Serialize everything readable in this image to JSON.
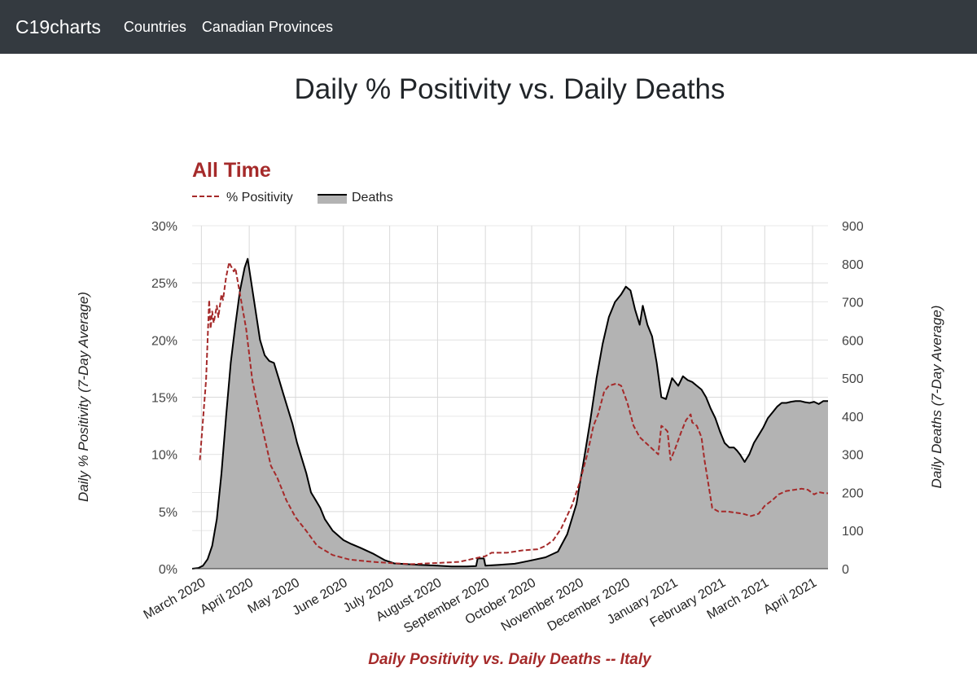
{
  "nav": {
    "brand": "C19charts",
    "links": [
      "Countries",
      "Canadian Provinces"
    ]
  },
  "page_title": "Daily % Positivity vs. Daily Deaths",
  "chart_data": {
    "type": "line",
    "title": "All Time",
    "xlabel": "Daily Positivity vs. Daily Deaths -- Italy",
    "ylabel_left": "Daily % Positivity (7-Day Average)",
    "ylabel_right": "Daily Deaths (7-Day Average)",
    "legend": [
      {
        "name": "% Positivity",
        "style": "dashed",
        "color": "#a52a2a"
      },
      {
        "name": "Deaths",
        "style": "area",
        "color": "#000000",
        "fill": "#b3b3b3"
      }
    ],
    "legend_position": "top-left",
    "x_start": "2020-02-24",
    "x_end": "2021-04-11",
    "x_ticks": [
      {
        "date": "2020-03-01",
        "label": "March 2020"
      },
      {
        "date": "2020-04-01",
        "label": "April 2020"
      },
      {
        "date": "2020-05-01",
        "label": "May 2020"
      },
      {
        "date": "2020-06-01",
        "label": "June 2020"
      },
      {
        "date": "2020-07-01",
        "label": "July 2020"
      },
      {
        "date": "2020-08-01",
        "label": "August 2020"
      },
      {
        "date": "2020-09-01",
        "label": "September 2020"
      },
      {
        "date": "2020-10-01",
        "label": "October 2020"
      },
      {
        "date": "2020-11-01",
        "label": "November 2020"
      },
      {
        "date": "2020-12-01",
        "label": "December 2020"
      },
      {
        "date": "2021-01-01",
        "label": "January 2021"
      },
      {
        "date": "2021-02-01",
        "label": "February 2021"
      },
      {
        "date": "2021-03-01",
        "label": "March 2021"
      },
      {
        "date": "2021-04-01",
        "label": "April 2021"
      }
    ],
    "y_left": {
      "min": 0,
      "max": 30,
      "ticks": [
        0,
        5,
        10,
        15,
        20,
        25,
        30
      ],
      "tick_labels": [
        "0%",
        "5%",
        "10%",
        "15%",
        "20%",
        "25%",
        "30%"
      ]
    },
    "y_right": {
      "min": 0,
      "max": 900,
      "ticks": [
        0,
        100,
        200,
        300,
        400,
        500,
        600,
        700,
        800,
        900
      ],
      "tick_labels": [
        "0",
        "100",
        "200",
        "300",
        "400",
        "500",
        "600",
        "700",
        "800",
        "900"
      ]
    },
    "grid": true,
    "colors": {
      "positivity": "#a52a2a",
      "deaths_line": "#000000",
      "deaths_fill": "#b3b3b3",
      "title": "#a52a2a",
      "grid": "#d9d9d9"
    },
    "series": [
      {
        "name": "% Positivity",
        "axis": "left",
        "points": [
          [
            "2020-02-29",
            9.5
          ],
          [
            "2020-03-02",
            13.0
          ],
          [
            "2020-03-04",
            16.5
          ],
          [
            "2020-03-05",
            20.0
          ],
          [
            "2020-03-06",
            23.5
          ],
          [
            "2020-03-07",
            21.0
          ],
          [
            "2020-03-08",
            22.5
          ],
          [
            "2020-03-09",
            21.5
          ],
          [
            "2020-03-11",
            23.0
          ],
          [
            "2020-03-12",
            22.0
          ],
          [
            "2020-03-14",
            24.0
          ],
          [
            "2020-03-15",
            23.5
          ],
          [
            "2020-03-17",
            25.5
          ],
          [
            "2020-03-19",
            26.8
          ],
          [
            "2020-03-20",
            26.5
          ],
          [
            "2020-03-22",
            26.0
          ],
          [
            "2020-03-23",
            26.3
          ],
          [
            "2020-03-26",
            24.0
          ],
          [
            "2020-03-30",
            21.0
          ],
          [
            "2020-04-03",
            16.5
          ],
          [
            "2020-04-06",
            14.5
          ],
          [
            "2020-04-10",
            12.0
          ],
          [
            "2020-04-15",
            9.0
          ],
          [
            "2020-04-19",
            8.0
          ],
          [
            "2020-04-25",
            6.0
          ],
          [
            "2020-05-01",
            4.5
          ],
          [
            "2020-05-08",
            3.3
          ],
          [
            "2020-05-15",
            2.0
          ],
          [
            "2020-05-25",
            1.2
          ],
          [
            "2020-06-05",
            0.8
          ],
          [
            "2020-06-20",
            0.6
          ],
          [
            "2020-07-01",
            0.5
          ],
          [
            "2020-07-15",
            0.4
          ],
          [
            "2020-08-01",
            0.5
          ],
          [
            "2020-08-15",
            0.6
          ],
          [
            "2020-08-25",
            0.9
          ],
          [
            "2020-09-01",
            1.1
          ],
          [
            "2020-09-05",
            1.4
          ],
          [
            "2020-09-15",
            1.4
          ],
          [
            "2020-09-25",
            1.6
          ],
          [
            "2020-10-05",
            1.7
          ],
          [
            "2020-10-10",
            2.0
          ],
          [
            "2020-10-15",
            2.5
          ],
          [
            "2020-10-20",
            3.5
          ],
          [
            "2020-10-27",
            5.5
          ],
          [
            "2020-11-01",
            7.5
          ],
          [
            "2020-11-06",
            10.0
          ],
          [
            "2020-11-10",
            12.5
          ],
          [
            "2020-11-13",
            13.5
          ],
          [
            "2020-11-17",
            15.5
          ],
          [
            "2020-11-20",
            16.0
          ],
          [
            "2020-11-25",
            16.2
          ],
          [
            "2020-11-28",
            16.0
          ],
          [
            "2020-12-02",
            14.5
          ],
          [
            "2020-12-06",
            12.5
          ],
          [
            "2020-12-10",
            11.5
          ],
          [
            "2020-12-14",
            11.0
          ],
          [
            "2020-12-18",
            10.5
          ],
          [
            "2020-12-22",
            10.0
          ],
          [
            "2020-12-24",
            12.5
          ],
          [
            "2020-12-26",
            12.3
          ],
          [
            "2020-12-28",
            12.0
          ],
          [
            "2020-12-30",
            9.5
          ],
          [
            "2021-01-02",
            10.5
          ],
          [
            "2021-01-06",
            12.0
          ],
          [
            "2021-01-09",
            13.0
          ],
          [
            "2021-01-12",
            13.5
          ],
          [
            "2021-01-13",
            12.8
          ],
          [
            "2021-01-16",
            12.5
          ],
          [
            "2021-01-19",
            11.5
          ],
          [
            "2021-01-21",
            9.5
          ],
          [
            "2021-01-24",
            7.0
          ],
          [
            "2021-01-26",
            5.3
          ],
          [
            "2021-01-30",
            5.0
          ],
          [
            "2021-02-05",
            5.0
          ],
          [
            "2021-02-10",
            4.9
          ],
          [
            "2021-02-15",
            4.8
          ],
          [
            "2021-02-20",
            4.6
          ],
          [
            "2021-02-25",
            4.8
          ],
          [
            "2021-03-01",
            5.5
          ],
          [
            "2021-03-06",
            6.0
          ],
          [
            "2021-03-10",
            6.5
          ],
          [
            "2021-03-15",
            6.8
          ],
          [
            "2021-03-20",
            6.9
          ],
          [
            "2021-03-25",
            7.0
          ],
          [
            "2021-03-29",
            6.9
          ],
          [
            "2021-04-02",
            6.5
          ],
          [
            "2021-04-05",
            6.7
          ],
          [
            "2021-04-09",
            6.6
          ],
          [
            "2021-04-11",
            6.6
          ]
        ]
      },
      {
        "name": "Deaths",
        "axis": "right",
        "points": [
          [
            "2020-02-24",
            0
          ],
          [
            "2020-02-28",
            2
          ],
          [
            "2020-03-02",
            8
          ],
          [
            "2020-03-05",
            25
          ],
          [
            "2020-03-08",
            60
          ],
          [
            "2020-03-11",
            130
          ],
          [
            "2020-03-14",
            250
          ],
          [
            "2020-03-17",
            400
          ],
          [
            "2020-03-20",
            540
          ],
          [
            "2020-03-23",
            640
          ],
          [
            "2020-03-26",
            730
          ],
          [
            "2020-03-29",
            790
          ],
          [
            "2020-03-31",
            813
          ],
          [
            "2020-04-02",
            760
          ],
          [
            "2020-04-05",
            680
          ],
          [
            "2020-04-08",
            600
          ],
          [
            "2020-04-11",
            560
          ],
          [
            "2020-04-14",
            545
          ],
          [
            "2020-04-17",
            540
          ],
          [
            "2020-04-20",
            500
          ],
          [
            "2020-04-23",
            460
          ],
          [
            "2020-04-26",
            420
          ],
          [
            "2020-04-29",
            380
          ],
          [
            "2020-05-02",
            330
          ],
          [
            "2020-05-05",
            290
          ],
          [
            "2020-05-08",
            250
          ],
          [
            "2020-05-11",
            200
          ],
          [
            "2020-05-14",
            180
          ],
          [
            "2020-05-17",
            160
          ],
          [
            "2020-05-20",
            130
          ],
          [
            "2020-05-25",
            100
          ],
          [
            "2020-06-01",
            75
          ],
          [
            "2020-06-06",
            65
          ],
          [
            "2020-06-12",
            55
          ],
          [
            "2020-06-20",
            40
          ],
          [
            "2020-06-28",
            22
          ],
          [
            "2020-07-04",
            14
          ],
          [
            "2020-07-12",
            12
          ],
          [
            "2020-07-20",
            10
          ],
          [
            "2020-08-01",
            8
          ],
          [
            "2020-08-10",
            6
          ],
          [
            "2020-08-20",
            6
          ],
          [
            "2020-08-26",
            7
          ],
          [
            "2020-08-27",
            27
          ],
          [
            "2020-08-31",
            27
          ],
          [
            "2020-09-01",
            8
          ],
          [
            "2020-09-10",
            10
          ],
          [
            "2020-09-20",
            13
          ],
          [
            "2020-10-01",
            22
          ],
          [
            "2020-10-10",
            30
          ],
          [
            "2020-10-18",
            45
          ],
          [
            "2020-10-24",
            90
          ],
          [
            "2020-10-30",
            170
          ],
          [
            "2020-11-04",
            290
          ],
          [
            "2020-11-08",
            390
          ],
          [
            "2020-11-12",
            500
          ],
          [
            "2020-11-16",
            590
          ],
          [
            "2020-11-20",
            660
          ],
          [
            "2020-11-24",
            700
          ],
          [
            "2020-11-28",
            720
          ],
          [
            "2020-12-01",
            740
          ],
          [
            "2020-12-04",
            730
          ],
          [
            "2020-12-07",
            680
          ],
          [
            "2020-12-10",
            640
          ],
          [
            "2020-12-12",
            690
          ],
          [
            "2020-12-15",
            640
          ],
          [
            "2020-12-18",
            610
          ],
          [
            "2020-12-21",
            540
          ],
          [
            "2020-12-24",
            450
          ],
          [
            "2020-12-27",
            445
          ],
          [
            "2020-12-31",
            500
          ],
          [
            "2021-01-04",
            480
          ],
          [
            "2021-01-07",
            505
          ],
          [
            "2021-01-10",
            495
          ],
          [
            "2021-01-13",
            490
          ],
          [
            "2021-01-16",
            480
          ],
          [
            "2021-01-19",
            470
          ],
          [
            "2021-01-22",
            450
          ],
          [
            "2021-01-25",
            420
          ],
          [
            "2021-01-28",
            395
          ],
          [
            "2021-01-31",
            360
          ],
          [
            "2021-02-03",
            330
          ],
          [
            "2021-02-06",
            318
          ],
          [
            "2021-02-09",
            318
          ],
          [
            "2021-02-11",
            310
          ],
          [
            "2021-02-13",
            300
          ],
          [
            "2021-02-16",
            280
          ],
          [
            "2021-02-19",
            300
          ],
          [
            "2021-02-22",
            330
          ],
          [
            "2021-02-25",
            350
          ],
          [
            "2021-02-28",
            370
          ],
          [
            "2021-03-03",
            395
          ],
          [
            "2021-03-06",
            410
          ],
          [
            "2021-03-09",
            425
          ],
          [
            "2021-03-12",
            435
          ],
          [
            "2021-03-15",
            435
          ],
          [
            "2021-03-18",
            438
          ],
          [
            "2021-03-21",
            440
          ],
          [
            "2021-03-24",
            440
          ],
          [
            "2021-03-27",
            437
          ],
          [
            "2021-03-30",
            435
          ],
          [
            "2021-04-02",
            438
          ],
          [
            "2021-04-05",
            432
          ],
          [
            "2021-04-08",
            440
          ],
          [
            "2021-04-11",
            440
          ]
        ]
      }
    ]
  }
}
